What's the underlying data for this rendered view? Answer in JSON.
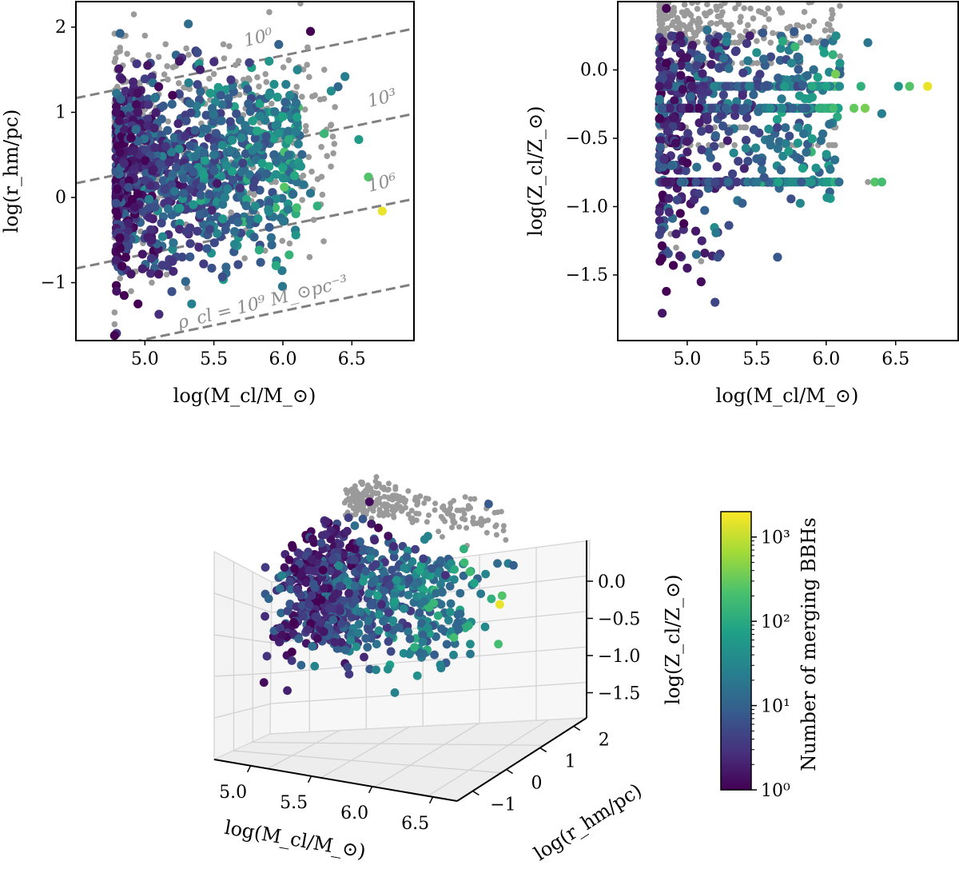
{
  "chart_data": [
    {
      "type": "scatter",
      "id": "mass-radius",
      "xlabel": "log(M_cl/M_⊙)",
      "ylabel": "log(r_hm/pc)",
      "xlim": [
        4.5,
        6.95
      ],
      "ylim": [
        -1.68,
        2.3
      ],
      "xticks": [
        5.0,
        5.5,
        6.0,
        6.5
      ],
      "xtick_labels": [
        "5.0",
        "5.5",
        "6.0",
        "6.5"
      ],
      "yticks": [
        -1,
        0,
        1,
        2
      ],
      "ytick_labels": [
        "−1",
        "0",
        "1",
        "2"
      ],
      "density_lines": [
        {
          "label": "10⁰",
          "intercept": -0.333
        },
        {
          "label": "10³",
          "intercept": -1.333
        },
        {
          "label": "10⁶",
          "intercept": -2.333
        },
        {
          "label": "ρ_cl = 10⁹ M_⊙pc⁻³",
          "intercept": -3.333
        }
      ],
      "density_slope": 0.3333,
      "colored_points": [
        [
          4.78,
          -1.62,
          0
        ],
        [
          4.85,
          -1.15,
          0
        ],
        [
          4.95,
          -1.25,
          0
        ],
        [
          4.9,
          -0.9,
          0.2
        ],
        [
          4.82,
          -0.6,
          0
        ],
        [
          4.88,
          -0.3,
          0.3
        ],
        [
          4.8,
          0.1,
          0
        ],
        [
          4.85,
          0.4,
          0.4
        ],
        [
          4.9,
          0.7,
          0
        ],
        [
          4.95,
          1.0,
          0.2
        ],
        [
          5.0,
          0.2,
          0.6
        ],
        [
          5.05,
          -0.5,
          0.3
        ],
        [
          5.1,
          -0.9,
          0.2
        ],
        [
          5.15,
          0.6,
          0.5
        ],
        [
          5.2,
          1.2,
          0
        ],
        [
          5.25,
          1.6,
          0.2
        ],
        [
          5.3,
          0.9,
          0.8
        ],
        [
          5.35,
          0.3,
          0.9
        ],
        [
          5.4,
          -0.2,
          1.0
        ],
        [
          5.45,
          0.8,
          1.1
        ],
        [
          5.5,
          0.5,
          1.3
        ],
        [
          5.55,
          1.2,
          0.9
        ],
        [
          5.6,
          0.1,
          1.4
        ],
        [
          5.65,
          -0.4,
          1.2
        ],
        [
          5.7,
          0.7,
          1.5
        ],
        [
          5.75,
          1.1,
          1.0
        ],
        [
          5.8,
          -0.1,
          1.6
        ],
        [
          5.85,
          0.4,
          1.8
        ],
        [
          5.9,
          1.6,
          1.7
        ],
        [
          5.95,
          -0.8,
          2.0
        ],
        [
          6.05,
          1.2,
          1.5
        ],
        [
          6.15,
          0.15,
          1.3
        ],
        [
          6.2,
          1.95,
          0
        ],
        [
          6.25,
          -0.1,
          2.1
        ],
        [
          6.3,
          0.75,
          2.2
        ],
        [
          6.35,
          1.25,
          1.6
        ],
        [
          6.45,
          1.42,
          1.4
        ],
        [
          6.55,
          0.68,
          1.8
        ],
        [
          6.62,
          0.24,
          2.4
        ],
        [
          6.72,
          -0.16,
          3.2
        ],
        [
          6.1,
          -0.12,
          2.3
        ],
        [
          6.0,
          0.35,
          1.9
        ],
        [
          5.82,
          -0.25,
          1.7
        ],
        [
          5.65,
          -0.55,
          1.5
        ],
        [
          5.58,
          0.0,
          1.4
        ],
        [
          5.62,
          0.55,
          1.3
        ],
        [
          5.3,
          -0.4,
          0.6
        ],
        [
          5.1,
          1.3,
          0.1
        ],
        [
          5.12,
          -0.3,
          0.7
        ],
        [
          5.28,
          0.05,
          1.0
        ],
        [
          4.92,
          0.55,
          0.3
        ],
        [
          5.02,
          1.55,
          0.2
        ],
        [
          5.4,
          1.5,
          0.3
        ],
        [
          5.55,
          0.9,
          1.1
        ],
        [
          5.7,
          0.3,
          1.2
        ],
        [
          5.9,
          1.2,
          1.6
        ],
        [
          6.4,
          1.3,
          1.1
        ],
        [
          6.0,
          0.95,
          1.9
        ],
        [
          5.78,
          0.55,
          1.4
        ],
        [
          6.2,
          0.05,
          1.3
        ],
        [
          5.45,
          -0.6,
          0.9
        ],
        [
          5.2,
          -0.75,
          0.5
        ]
      ],
      "grey_points": [
        [
          4.78,
          -1.35
        ],
        [
          4.82,
          -0.95
        ],
        [
          4.86,
          1.9
        ],
        [
          4.92,
          2.15
        ],
        [
          4.8,
          1.3
        ],
        [
          4.84,
          1.55
        ],
        [
          5.0,
          1.9
        ],
        [
          5.1,
          1.65
        ],
        [
          5.3,
          1.75
        ],
        [
          5.5,
          1.45
        ],
        [
          5.65,
          1.2
        ],
        [
          5.85,
          1.05
        ],
        [
          6.1,
          1.3
        ],
        [
          6.3,
          1.5
        ],
        [
          4.9,
          -1.1
        ],
        [
          5.05,
          -1.0
        ],
        [
          5.15,
          1.8
        ],
        [
          5.4,
          1.2
        ],
        [
          5.75,
          1.4
        ],
        [
          4.95,
          1.25
        ]
      ]
    },
    {
      "type": "scatter",
      "id": "mass-metallicity",
      "xlabel": "log(M_cl/M_⊙)",
      "ylabel": "log(Z_cl/Z_⊙)",
      "xlim": [
        4.5,
        6.95
      ],
      "ylim": [
        -1.98,
        0.5
      ],
      "xticks": [
        5.0,
        5.5,
        6.0,
        6.5
      ],
      "xtick_labels": [
        "5.0",
        "5.5",
        "6.0",
        "6.5"
      ],
      "yticks": [
        0.0,
        -0.5,
        -1.0,
        -1.5
      ],
      "ytick_labels": [
        "0.0",
        "−0.5",
        "−1.0",
        "−1.5"
      ],
      "colored_points": [
        [
          4.82,
          -1.78,
          0.2
        ],
        [
          4.85,
          -1.62,
          0
        ],
        [
          4.9,
          -1.43,
          0
        ],
        [
          4.92,
          -1.2,
          0.3
        ],
        [
          4.95,
          -1.05,
          0
        ],
        [
          5.0,
          -1.45,
          0.2
        ],
        [
          5.1,
          -1.55,
          0.1
        ],
        [
          5.2,
          -1.7,
          0.7
        ],
        [
          5.22,
          -1.37,
          0.8
        ],
        [
          5.65,
          -1.37,
          0.9
        ],
        [
          5.7,
          -0.12,
          1.8
        ],
        [
          5.9,
          -0.12,
          2.0
        ],
        [
          6.0,
          -0.12,
          1.9
        ],
        [
          6.25,
          -0.12,
          2.1
        ],
        [
          6.52,
          -0.12,
          1.7
        ],
        [
          6.6,
          -0.12,
          2.4
        ],
        [
          6.73,
          -0.12,
          3.2
        ],
        [
          6.2,
          -0.28,
          2.5
        ],
        [
          6.28,
          -0.28,
          2.6
        ],
        [
          6.05,
          -0.28,
          2.3
        ],
        [
          5.95,
          -0.28,
          2.1
        ],
        [
          5.6,
          -0.28,
          1.6
        ],
        [
          6.4,
          -0.32,
          1.4
        ],
        [
          6.3,
          0.2,
          1.3
        ],
        [
          6.0,
          -0.82,
          1.8
        ],
        [
          6.35,
          -0.82,
          2.4
        ],
        [
          6.4,
          -0.82,
          2.3
        ],
        [
          5.75,
          -0.82,
          1.6
        ],
        [
          5.5,
          -0.82,
          1.3
        ],
        [
          5.2,
          -0.82,
          0.7
        ],
        [
          4.85,
          -0.82,
          0.2
        ],
        [
          5.55,
          0.08,
          1.1
        ],
        [
          5.6,
          -0.55,
          1.2
        ],
        [
          5.8,
          -0.42,
          1.4
        ],
        [
          5.3,
          -0.45,
          0.8
        ],
        [
          5.0,
          -0.6,
          0.3
        ],
        [
          4.95,
          0.25,
          0.2
        ],
        [
          5.2,
          0.2,
          0.2
        ],
        [
          5.45,
          0.25,
          0.3
        ],
        [
          4.85,
          0.45,
          0
        ],
        [
          5.75,
          0.05,
          1.5
        ],
        [
          5.9,
          -0.2,
          1.8
        ],
        [
          5.4,
          -0.3,
          0.9
        ],
        [
          5.1,
          -0.15,
          0.5
        ],
        [
          4.9,
          -0.35,
          0.2
        ],
        [
          4.85,
          0.05,
          0
        ],
        [
          5.05,
          -0.95,
          0.4
        ],
        [
          5.5,
          -0.65,
          1.0
        ]
      ],
      "grey_points": [
        [
          4.85,
          0.45
        ],
        [
          4.9,
          0.35
        ],
        [
          5.0,
          0.3
        ],
        [
          5.15,
          0.25
        ],
        [
          5.3,
          0.3
        ],
        [
          5.45,
          0.25
        ],
        [
          5.6,
          0.2
        ],
        [
          5.75,
          0.15
        ],
        [
          5.9,
          0.2
        ],
        [
          6.1,
          0.1
        ],
        [
          4.88,
          -1.2
        ],
        [
          4.92,
          -1.3
        ],
        [
          5.1,
          -1.4
        ],
        [
          5.85,
          -0.82
        ],
        [
          6.0,
          -0.82
        ],
        [
          6.3,
          -0.82
        ]
      ]
    },
    {
      "type": "scatter3d",
      "id": "3d-view",
      "xlabel": "log(M_cl/M_⊙)",
      "ylabel": "log(r_hm/pc)",
      "zlabel": "log(Z_cl/Z_⊙)",
      "xtick_labels": [
        "5.0",
        "5.5",
        "6.0",
        "6.5"
      ],
      "ytick_labels": [
        "−1",
        "0",
        "1",
        "2"
      ],
      "ztick_labels": [
        "0.0",
        "−0.5",
        "−1.0",
        "−1.5"
      ],
      "colored_points": [
        [
          4.9,
          0.5,
          -0.3,
          0
        ],
        [
          5.0,
          1.0,
          -0.1,
          0
        ],
        [
          5.1,
          0.2,
          -0.5,
          0.3
        ],
        [
          5.2,
          -0.5,
          -0.8,
          0.2
        ],
        [
          5.3,
          0.8,
          -0.2,
          0.6
        ],
        [
          5.4,
          0.3,
          -0.6,
          0.9
        ],
        [
          5.5,
          -0.2,
          -0.9,
          1.0
        ],
        [
          5.6,
          0.6,
          -0.3,
          1.2
        ],
        [
          5.7,
          0.1,
          -0.12,
          1.7
        ],
        [
          5.8,
          -0.3,
          -0.28,
          1.8
        ],
        [
          5.9,
          0.4,
          -0.82,
          1.6
        ],
        [
          6.0,
          0.9,
          -0.12,
          2.0
        ],
        [
          6.1,
          -0.1,
          -0.28,
          2.2
        ],
        [
          6.2,
          0.2,
          -0.82,
          2.3
        ],
        [
          6.3,
          0.5,
          -0.12,
          1.9
        ],
        [
          6.5,
          0.7,
          -0.3,
          2.4
        ],
        [
          6.73,
          -0.16,
          -0.12,
          3.2
        ],
        [
          6.6,
          0.24,
          -0.82,
          2.3
        ],
        [
          4.85,
          -1.2,
          -1.4,
          0.1
        ],
        [
          4.95,
          -0.8,
          -1.6,
          0.3
        ],
        [
          5.05,
          -1.0,
          -1.1,
          0.5
        ],
        [
          5.25,
          0.0,
          -1.37,
          0.2
        ],
        [
          5.15,
          1.4,
          0.1,
          0
        ],
        [
          4.95,
          1.8,
          0.3,
          0.1
        ],
        [
          5.35,
          1.2,
          -0.05,
          0.4
        ],
        [
          5.55,
          1.0,
          -0.4,
          0.8
        ],
        [
          5.75,
          0.8,
          -0.6,
          1.3
        ],
        [
          6.4,
          1.4,
          -0.1,
          1.0
        ],
        [
          5.45,
          -0.6,
          -1.2,
          0.7
        ],
        [
          5.0,
          0.7,
          -0.9,
          0.4
        ]
      ],
      "grey_points": [
        [
          4.9,
          1.9,
          0.4
        ],
        [
          5.0,
          2.1,
          0.3
        ],
        [
          5.2,
          1.8,
          0.45
        ],
        [
          5.4,
          1.6,
          0.35
        ],
        [
          5.6,
          1.4,
          0.3
        ],
        [
          5.8,
          1.2,
          0.2
        ],
        [
          6.0,
          1.3,
          0.1
        ],
        [
          6.3,
          1.5,
          0.2
        ],
        [
          4.85,
          1.5,
          -1.3
        ]
      ]
    },
    {
      "type": "colorbar",
      "id": "colorbar",
      "label": "Number of merging BBHs",
      "scale": "log",
      "range": [
        1,
        2000
      ],
      "ticks": [
        {
          "value": 1,
          "label": "10⁰"
        },
        {
          "value": 10,
          "label": "10¹"
        },
        {
          "value": 100,
          "label": "10²"
        },
        {
          "value": 1000,
          "label": "10³"
        }
      ],
      "colormap": "viridis"
    }
  ]
}
